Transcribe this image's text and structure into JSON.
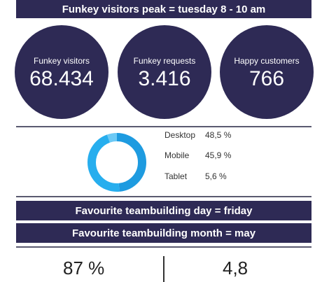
{
  "banners": {
    "top": "Funkey visitors peak = tuesday 8 - 10 am",
    "day": "Favourite teambuilding day = friday",
    "month": "Favourite teambuilding month = may"
  },
  "circles": [
    {
      "label": "Funkey visitors",
      "value": "68.434"
    },
    {
      "label": "Funkey requests",
      "value": "3.416"
    },
    {
      "label": "Happy customers",
      "value": "766"
    }
  ],
  "devices": [
    {
      "name": "Desktop",
      "pct_label": "48,5 %",
      "value": 48.5
    },
    {
      "name": "Mobile",
      "pct_label": "45,9 %",
      "value": 45.9
    },
    {
      "name": "Tablet",
      "pct_label": "5,6 %",
      "value": 5.6
    }
  ],
  "donut_colors": [
    "#1e9be0",
    "#27aeee",
    "#6cc9f5"
  ],
  "bottom": {
    "left_value": "87 %",
    "right_value": "4,8"
  }
}
